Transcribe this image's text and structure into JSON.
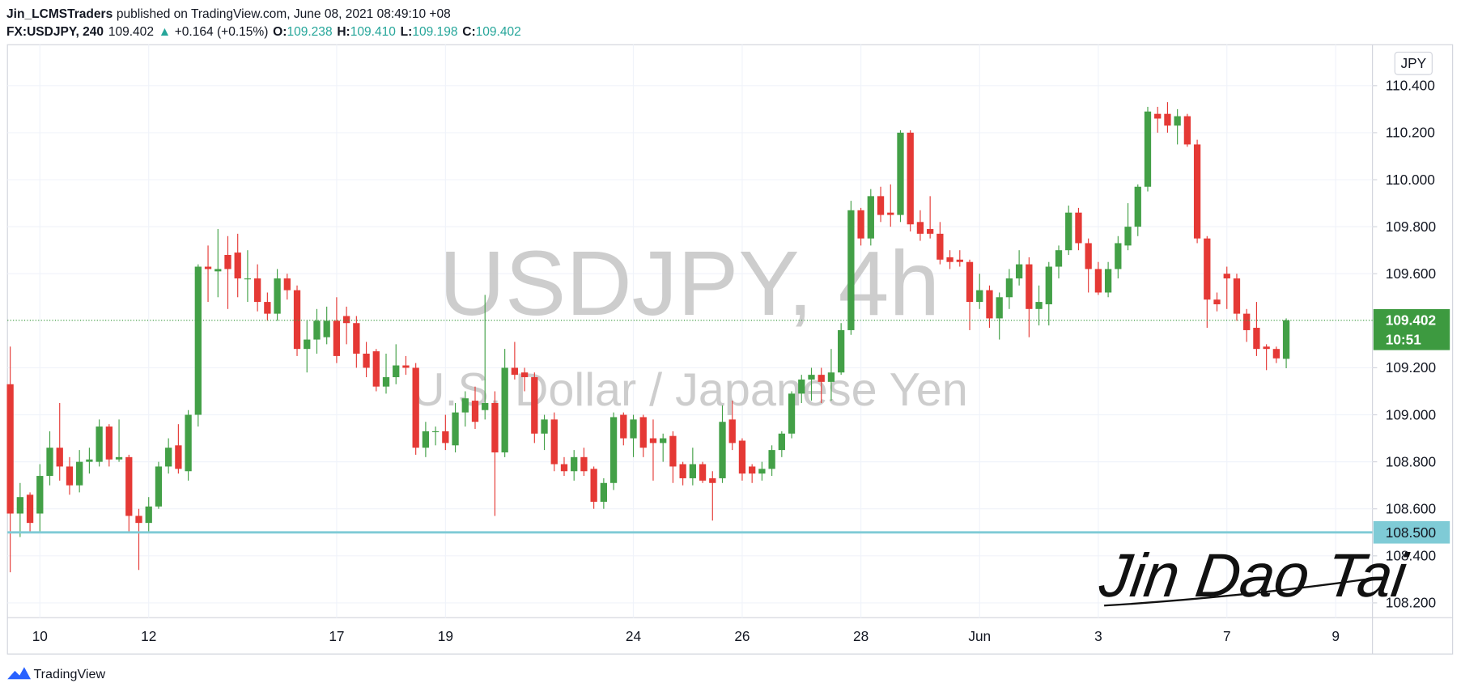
{
  "header": {
    "author": "Jin_LCMSTraders",
    "published": "published on TradingView.com, June 08, 2021 08:49:10 +08",
    "symbol": "FX:USDJPY, 240",
    "last": "109.402",
    "arrow": "▲",
    "change": "+0.164 (+0.15%)",
    "o_label": "O:",
    "o": "109.238",
    "h_label": "H:",
    "h": "109.410",
    "l_label": "L:",
    "l": "109.198",
    "c_label": "C:",
    "c": "109.402"
  },
  "chart_data": {
    "type": "candlestick",
    "watermark_title": "USDJPY, 4h",
    "watermark_subtitle": "U.S. Dollar / Japanese Yen",
    "currency": "JPY",
    "categories": [
      null,
      null,
      null,
      "10",
      null,
      null,
      null,
      null,
      null,
      null,
      null,
      null,
      null,
      null,
      "12",
      null,
      null,
      null,
      null,
      null,
      null,
      null,
      null,
      null,
      null,
      null,
      null,
      null,
      null,
      null,
      null,
      null,
      null,
      "17",
      null,
      null,
      null,
      null,
      null,
      null,
      null,
      null,
      null,
      null,
      "19",
      null,
      null,
      null,
      null,
      null,
      null,
      null,
      null,
      null,
      null,
      null,
      null,
      null,
      null,
      null,
      null,
      null,
      null,
      "24",
      null,
      null,
      null,
      null,
      null,
      null,
      null,
      null,
      null,
      null,
      "26",
      null,
      null,
      null,
      null,
      null,
      null,
      null,
      null,
      null,
      null,
      null,
      "28",
      null,
      null,
      null,
      null,
      null,
      null,
      null,
      null,
      null,
      null,
      null,
      "Jun",
      null,
      null,
      null,
      null,
      null,
      null,
      null,
      null,
      null,
      null,
      null,
      "3",
      null,
      null,
      null,
      null,
      null,
      null,
      null,
      null,
      null,
      null,
      null,
      null,
      "7",
      null,
      null,
      null,
      null,
      null,
      null,
      null,
      null,
      null,
      null,
      "9",
      null,
      null,
      null
    ],
    "open": [
      109.13,
      108.58,
      108.66,
      108.58,
      108.74,
      108.86,
      108.78,
      108.7,
      108.8,
      108.8,
      108.95,
      108.81,
      108.82,
      108.57,
      108.54,
      108.61,
      108.78,
      108.87,
      108.76,
      109.0,
      109.63,
      109.61,
      109.68,
      109.69,
      109.58,
      109.58,
      109.48,
      109.43,
      109.58,
      109.53,
      109.28,
      109.32,
      109.33,
      109.4,
      109.42,
      109.39,
      109.26,
      109.27,
      109.12,
      109.16,
      109.21,
      109.2,
      108.86,
      108.93,
      108.93,
      108.87,
      109.01,
      109.06,
      109.02,
      109.05,
      108.84,
      109.2,
      109.18,
      109.16,
      108.92,
      108.98,
      108.79,
      108.76,
      108.82,
      108.77,
      108.63,
      108.71,
      109.0,
      108.9,
      108.99,
      108.9,
      108.88,
      108.91,
      108.79,
      108.73,
      108.79,
      108.73,
      108.73,
      108.98,
      108.89,
      108.78,
      108.75,
      108.77,
      108.85,
      108.92,
      109.09,
      109.15,
      109.17,
      109.14,
      109.18,
      109.36,
      109.87,
      109.75,
      109.93,
      109.86,
      109.85,
      110.2,
      109.82,
      109.79,
      109.77,
      109.67,
      109.66,
      109.65,
      109.48,
      109.53,
      109.41,
      109.5,
      109.58,
      109.64,
      109.45,
      109.47,
      109.63,
      109.7,
      109.86,
      109.73,
      109.62,
      109.52,
      109.62,
      109.72,
      109.8,
      109.97,
      110.28,
      110.28,
      110.23,
      110.27,
      110.15,
      109.75,
      109.49,
      109.6,
      109.58,
      109.43,
      109.37,
      109.29,
      109.28,
      109.238,
      null,
      null,
      null,
      null,
      null,
      null,
      null,
      null
    ],
    "high": [
      109.29,
      108.71,
      108.67,
      108.79,
      108.93,
      109.05,
      108.82,
      108.85,
      108.86,
      108.98,
      108.96,
      108.98,
      108.83,
      108.6,
      108.65,
      108.8,
      108.9,
      108.96,
      109.02,
      109.64,
      109.72,
      109.79,
      109.76,
      109.77,
      109.7,
      109.64,
      109.52,
      109.62,
      109.6,
      109.55,
      109.4,
      109.45,
      109.46,
      109.5,
      109.46,
      109.42,
      109.31,
      109.28,
      109.26,
      109.3,
      109.25,
      109.22,
      108.97,
      108.95,
      109.0,
      109.05,
      109.1,
      109.12,
      109.51,
      109.1,
      109.28,
      109.31,
      109.2,
      109.18,
      109.0,
      109.01,
      108.82,
      108.85,
      108.86,
      108.78,
      108.73,
      109.01,
      109.01,
      109.0,
      109.0,
      108.98,
      108.92,
      108.93,
      108.8,
      108.86,
      108.8,
      108.76,
      109.04,
      109.06,
      108.9,
      108.79,
      108.8,
      108.87,
      108.93,
      109.1,
      109.17,
      109.2,
      109.2,
      109.28,
      109.39,
      109.91,
      109.88,
      109.96,
      109.97,
      109.98,
      110.21,
      110.21,
      109.87,
      109.93,
      109.82,
      109.7,
      109.7,
      109.66,
      109.6,
      109.55,
      109.52,
      109.62,
      109.7,
      109.67,
      109.55,
      109.65,
      109.72,
      109.89,
      109.88,
      109.75,
      109.65,
      109.65,
      109.76,
      109.9,
      109.98,
      110.31,
      110.31,
      110.33,
      110.3,
      110.28,
      110.17,
      109.76,
      109.52,
      109.63,
      109.6,
      109.45,
      109.48,
      109.3,
      109.29,
      109.41,
      null,
      null,
      null,
      null,
      null,
      null,
      null,
      null
    ],
    "low": [
      108.33,
      108.48,
      108.5,
      108.5,
      108.7,
      108.72,
      108.66,
      108.67,
      108.75,
      108.78,
      108.78,
      108.8,
      108.5,
      108.34,
      108.5,
      108.6,
      108.75,
      108.75,
      108.72,
      108.95,
      109.48,
      109.5,
      109.45,
      109.5,
      109.48,
      109.44,
      109.4,
      109.4,
      109.49,
      109.25,
      109.18,
      109.26,
      109.3,
      109.22,
      109.3,
      109.2,
      109.16,
      109.1,
      109.09,
      109.13,
      109.17,
      108.83,
      108.82,
      108.87,
      108.85,
      108.84,
      108.95,
      108.94,
      108.98,
      108.57,
      108.82,
      109.15,
      109.1,
      108.88,
      108.85,
      108.76,
      108.74,
      108.72,
      108.74,
      108.6,
      108.6,
      108.68,
      108.87,
      108.82,
      108.82,
      108.72,
      108.8,
      108.71,
      108.7,
      108.7,
      108.71,
      108.55,
      108.71,
      108.85,
      108.72,
      108.71,
      108.72,
      108.74,
      108.82,
      108.9,
      109.05,
      109.06,
      109.05,
      109.06,
      109.17,
      109.34,
      109.72,
      109.72,
      109.82,
      109.8,
      109.82,
      109.78,
      109.74,
      109.75,
      109.64,
      109.62,
      109.63,
      109.36,
      109.45,
      109.37,
      109.32,
      109.45,
      109.55,
      109.33,
      109.38,
      109.38,
      109.58,
      109.68,
      109.7,
      109.52,
      109.51,
      109.5,
      109.58,
      109.7,
      109.76,
      109.95,
      110.2,
      110.2,
      110.15,
      110.14,
      109.73,
      109.37,
      109.44,
      109.45,
      109.4,
      109.31,
      109.25,
      109.19,
      109.22,
      109.198,
      null,
      null,
      null,
      null,
      null,
      null,
      null,
      null
    ],
    "close": [
      108.58,
      108.65,
      108.54,
      108.74,
      108.86,
      108.78,
      108.7,
      108.8,
      108.81,
      108.95,
      108.81,
      108.82,
      108.57,
      108.54,
      108.61,
      108.78,
      108.86,
      108.77,
      109.0,
      109.63,
      109.62,
      109.62,
      109.62,
      109.58,
      109.58,
      109.48,
      109.43,
      109.58,
      109.53,
      109.28,
      109.32,
      109.4,
      109.4,
      109.25,
      109.39,
      109.26,
      109.2,
      109.12,
      109.16,
      109.21,
      109.2,
      108.86,
      108.93,
      108.93,
      108.88,
      109.01,
      109.07,
      108.97,
      109.05,
      108.84,
      109.2,
      109.17,
      109.16,
      108.92,
      108.98,
      108.79,
      108.76,
      108.82,
      108.76,
      108.63,
      108.71,
      108.99,
      108.9,
      108.98,
      108.86,
      108.88,
      108.9,
      108.78,
      108.73,
      108.79,
      108.72,
      108.71,
      108.97,
      108.88,
      108.75,
      108.75,
      108.77,
      108.85,
      108.92,
      109.09,
      109.15,
      109.17,
      109.14,
      109.18,
      109.36,
      109.87,
      109.75,
      109.93,
      109.85,
      109.85,
      110.2,
      109.81,
      109.77,
      109.77,
      109.66,
      109.65,
      109.65,
      109.48,
      109.53,
      109.41,
      109.5,
      109.58,
      109.64,
      109.45,
      109.48,
      109.63,
      109.7,
      109.86,
      109.73,
      109.62,
      109.52,
      109.62,
      109.73,
      109.8,
      109.97,
      110.29,
      110.26,
      110.23,
      110.27,
      110.15,
      109.75,
      109.49,
      109.47,
      109.58,
      109.43,
      109.36,
      109.28,
      109.28,
      109.24,
      109.402,
      null,
      null,
      null,
      null,
      null,
      null,
      null,
      null
    ],
    "up_color": "#43a047",
    "down_color": "#e53935",
    "ylim": [
      108.137,
      110.574
    ],
    "yticks": [
      {
        "value": 108.2,
        "label": "108.200"
      },
      {
        "value": 108.4,
        "label": "108.400"
      },
      {
        "value": 108.6,
        "label": "108.600"
      },
      {
        "value": 108.8,
        "label": "108.800"
      },
      {
        "value": 109.0,
        "label": "109.000"
      },
      {
        "value": 109.2,
        "label": "109.200"
      },
      {
        "value": 109.6,
        "label": "109.600"
      },
      {
        "value": 109.8,
        "label": "109.800"
      },
      {
        "value": 110.0,
        "label": "110.000"
      },
      {
        "value": 110.2,
        "label": "110.200"
      },
      {
        "value": 110.4,
        "label": "110.400"
      }
    ],
    "grid": true,
    "hline": {
      "value": 108.5,
      "label": "108.500",
      "color": "#7fcbd6"
    },
    "last_price": {
      "value": 109.402,
      "label": "109.402",
      "countdown": "10:51",
      "color": "#3d9a40"
    }
  },
  "signature": "Jin Dao Tai",
  "footer": {
    "brand": "TradingView"
  }
}
